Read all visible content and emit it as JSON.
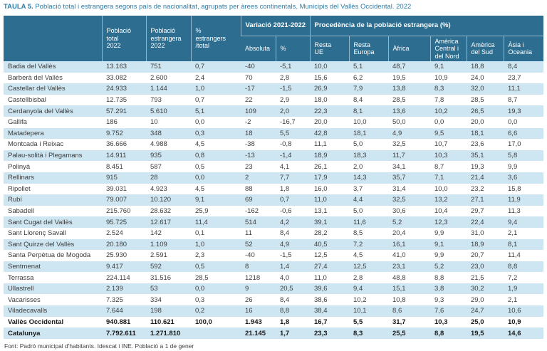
{
  "title": {
    "prefix": "TAULA 5.",
    "text": "Població total i estrangera segons país de nacionalitat, agrupats per àrees continentals. Municipis del Vallès Occidental. 2022"
  },
  "source_note": "Font: Padró municipal d'habitants. Idescat i INE. Població a 1 de gener",
  "colors": {
    "header_bg": "#2d6e90",
    "stripe": "#cee6f2",
    "title": "#2d7ca6",
    "header_separator": "#93b9cf"
  },
  "chart_data": {
    "type": "table",
    "title": "TAULA 5. Població total i estrangera segons país de nacionalitat, agrupats per àrees continentals. Municipis del Vallès Occidental. 2022",
    "group_headers": [
      {
        "label": "Variació 2021-2022",
        "colspan": 2
      },
      {
        "label": "Procedència de la població estrangera (%)",
        "colspan": 6
      }
    ],
    "columns": [
      "",
      "Població\ntotal\n2022",
      "Població\nestrangera\n2022",
      "%\nestrangers\n/total",
      "Absoluta",
      "%",
      "Resta\nUE",
      "Resta\nEuropa",
      "Àfrica",
      "Amèrica\nCentral i\ndel Nord",
      "Amèrica\ndel Sud",
      "Àsia i\nOceania"
    ],
    "rows": [
      {
        "name": "Badia del Vallès",
        "bold": false,
        "values": [
          "13.163",
          "751",
          "0,7",
          "-40",
          "-5,1",
          "10,0",
          "5,1",
          "48,7",
          "9,1",
          "18,8",
          "8,4"
        ]
      },
      {
        "name": "Barberà del Vallès",
        "bold": false,
        "values": [
          "33.082",
          "2.600",
          "2,4",
          "70",
          "2,8",
          "15,6",
          "6,2",
          "19,5",
          "10,9",
          "24,0",
          "23,7"
        ]
      },
      {
        "name": "Castellar del Vallès",
        "bold": false,
        "values": [
          "24.933",
          "1.144",
          "1,0",
          "-17",
          "-1,5",
          "26,9",
          "7,9",
          "13,8",
          "8,3",
          "32,0",
          "11,1"
        ]
      },
      {
        "name": "Castellbisbal",
        "bold": false,
        "values": [
          "12.735",
          "793",
          "0,7",
          "22",
          "2,9",
          "18,0",
          "8,4",
          "28,5",
          "7,8",
          "28,5",
          "8,7"
        ]
      },
      {
        "name": "Cerdanyola del Vallès",
        "bold": false,
        "values": [
          "57.291",
          "5.610",
          "5,1",
          "109",
          "2,0",
          "22,3",
          "8,1",
          "13,6",
          "10,2",
          "26,5",
          "19,3"
        ]
      },
      {
        "name": "Gallifa",
        "bold": false,
        "values": [
          "186",
          "10",
          "0,0",
          "-2",
          "-16,7",
          "20,0",
          "10,0",
          "50,0",
          "0,0",
          "20,0",
          "0,0"
        ]
      },
      {
        "name": "Matadepera",
        "bold": false,
        "values": [
          "9.752",
          "348",
          "0,3",
          "18",
          "5,5",
          "42,8",
          "18,1",
          "4,9",
          "9,5",
          "18,1",
          "6,6"
        ]
      },
      {
        "name": "Montcada i Reixac",
        "bold": false,
        "values": [
          "36.666",
          "4.988",
          "4,5",
          "-38",
          "-0,8",
          "11,1",
          "5,0",
          "32,5",
          "10,7",
          "23,6",
          "17,0"
        ]
      },
      {
        "name": "Palau-solità i Plegamans",
        "bold": false,
        "values": [
          "14.911",
          "935",
          "0,8",
          "-13",
          "-1,4",
          "18,9",
          "18,3",
          "11,7",
          "10,3",
          "35,1",
          "5,8"
        ]
      },
      {
        "name": "Polinyà",
        "bold": false,
        "values": [
          "8.451",
          "587",
          "0,5",
          "23",
          "4,1",
          "26,1",
          "2,0",
          "34,1",
          "8,7",
          "19,3",
          "9,9"
        ]
      },
      {
        "name": "Rellinars",
        "bold": false,
        "values": [
          "915",
          "28",
          "0,0",
          "2",
          "7,7",
          "17,9",
          "14,3",
          "35,7",
          "7,1",
          "21,4",
          "3,6"
        ]
      },
      {
        "name": "Ripollet",
        "bold": false,
        "values": [
          "39.031",
          "4.923",
          "4,5",
          "88",
          "1,8",
          "16,0",
          "3,7",
          "31,4",
          "10,0",
          "23,2",
          "15,8"
        ]
      },
      {
        "name": "Rubí",
        "bold": false,
        "values": [
          "79.007",
          "10.120",
          "9,1",
          "69",
          "0,7",
          "11,0",
          "4,4",
          "32,5",
          "13,2",
          "27,1",
          "11,9"
        ]
      },
      {
        "name": "Sabadell",
        "bold": false,
        "values": [
          "215.760",
          "28.632",
          "25,9",
          "-162",
          "-0,6",
          "13,1",
          "5,0",
          "30,6",
          "10,4",
          "29,7",
          "11,3"
        ]
      },
      {
        "name": "Sant Cugat del Vallès",
        "bold": false,
        "values": [
          "95.725",
          "12.617",
          "11,4",
          "514",
          "4,2",
          "39,1",
          "11,6",
          "5,2",
          "12,3",
          "22,4",
          "9,4"
        ]
      },
      {
        "name": "Sant Llorenç Savall",
        "bold": false,
        "values": [
          "2.524",
          "142",
          "0,1",
          "11",
          "8,4",
          "28,2",
          "8,5",
          "20,4",
          "9,9",
          "31,0",
          "2,1"
        ]
      },
      {
        "name": "Sant Quirze del Vallès",
        "bold": false,
        "values": [
          "20.180",
          "1.109",
          "1,0",
          "52",
          "4,9",
          "40,5",
          "7,2",
          "16,1",
          "9,1",
          "18,9",
          "8,1"
        ]
      },
      {
        "name": "Santa Perpètua de Mogoda",
        "bold": false,
        "values": [
          "25.930",
          "2.591",
          "2,3",
          "-40",
          "-1,5",
          "12,5",
          "4,5",
          "41,0",
          "9,9",
          "20,7",
          "11,4"
        ]
      },
      {
        "name": "Sentmenat",
        "bold": false,
        "values": [
          "9.417",
          "592",
          "0,5",
          "8",
          "1,4",
          "27,4",
          "12,5",
          "23,1",
          "5,2",
          "23,0",
          "8,8"
        ]
      },
      {
        "name": "Terrassa",
        "bold": false,
        "values": [
          "224.114",
          "31.516",
          "28,5",
          "1218",
          "4,0",
          "11,0",
          "2,8",
          "48,8",
          "8,8",
          "21,5",
          "7,2"
        ]
      },
      {
        "name": "Ullastrell",
        "bold": false,
        "values": [
          "2.139",
          "53",
          "0,0",
          "9",
          "20,5",
          "39,6",
          "9,4",
          "15,1",
          "3,8",
          "30,2",
          "1,9"
        ]
      },
      {
        "name": "Vacarisses",
        "bold": false,
        "values": [
          "7.325",
          "334",
          "0,3",
          "26",
          "8,4",
          "38,6",
          "10,2",
          "10,8",
          "9,3",
          "29,0",
          "2,1"
        ]
      },
      {
        "name": "Viladecavalls",
        "bold": false,
        "values": [
          "7.644",
          "198",
          "0,2",
          "16",
          "8,8",
          "38,4",
          "10,1",
          "8,6",
          "7,6",
          "24,7",
          "10,6"
        ]
      },
      {
        "name": "Vallès Occidental",
        "bold": true,
        "values": [
          "940.881",
          "110.621",
          "100,0",
          "1.943",
          "1,8",
          "16,7",
          "5,5",
          "31,7",
          "10,3",
          "25,0",
          "10,9"
        ]
      },
      {
        "name": "Catalunya",
        "bold": true,
        "values": [
          "7.792.611",
          "1.271.810",
          "",
          "21.145",
          "1,7",
          "23,3",
          "8,3",
          "25,5",
          "8,8",
          "19,5",
          "14,6"
        ]
      }
    ]
  }
}
